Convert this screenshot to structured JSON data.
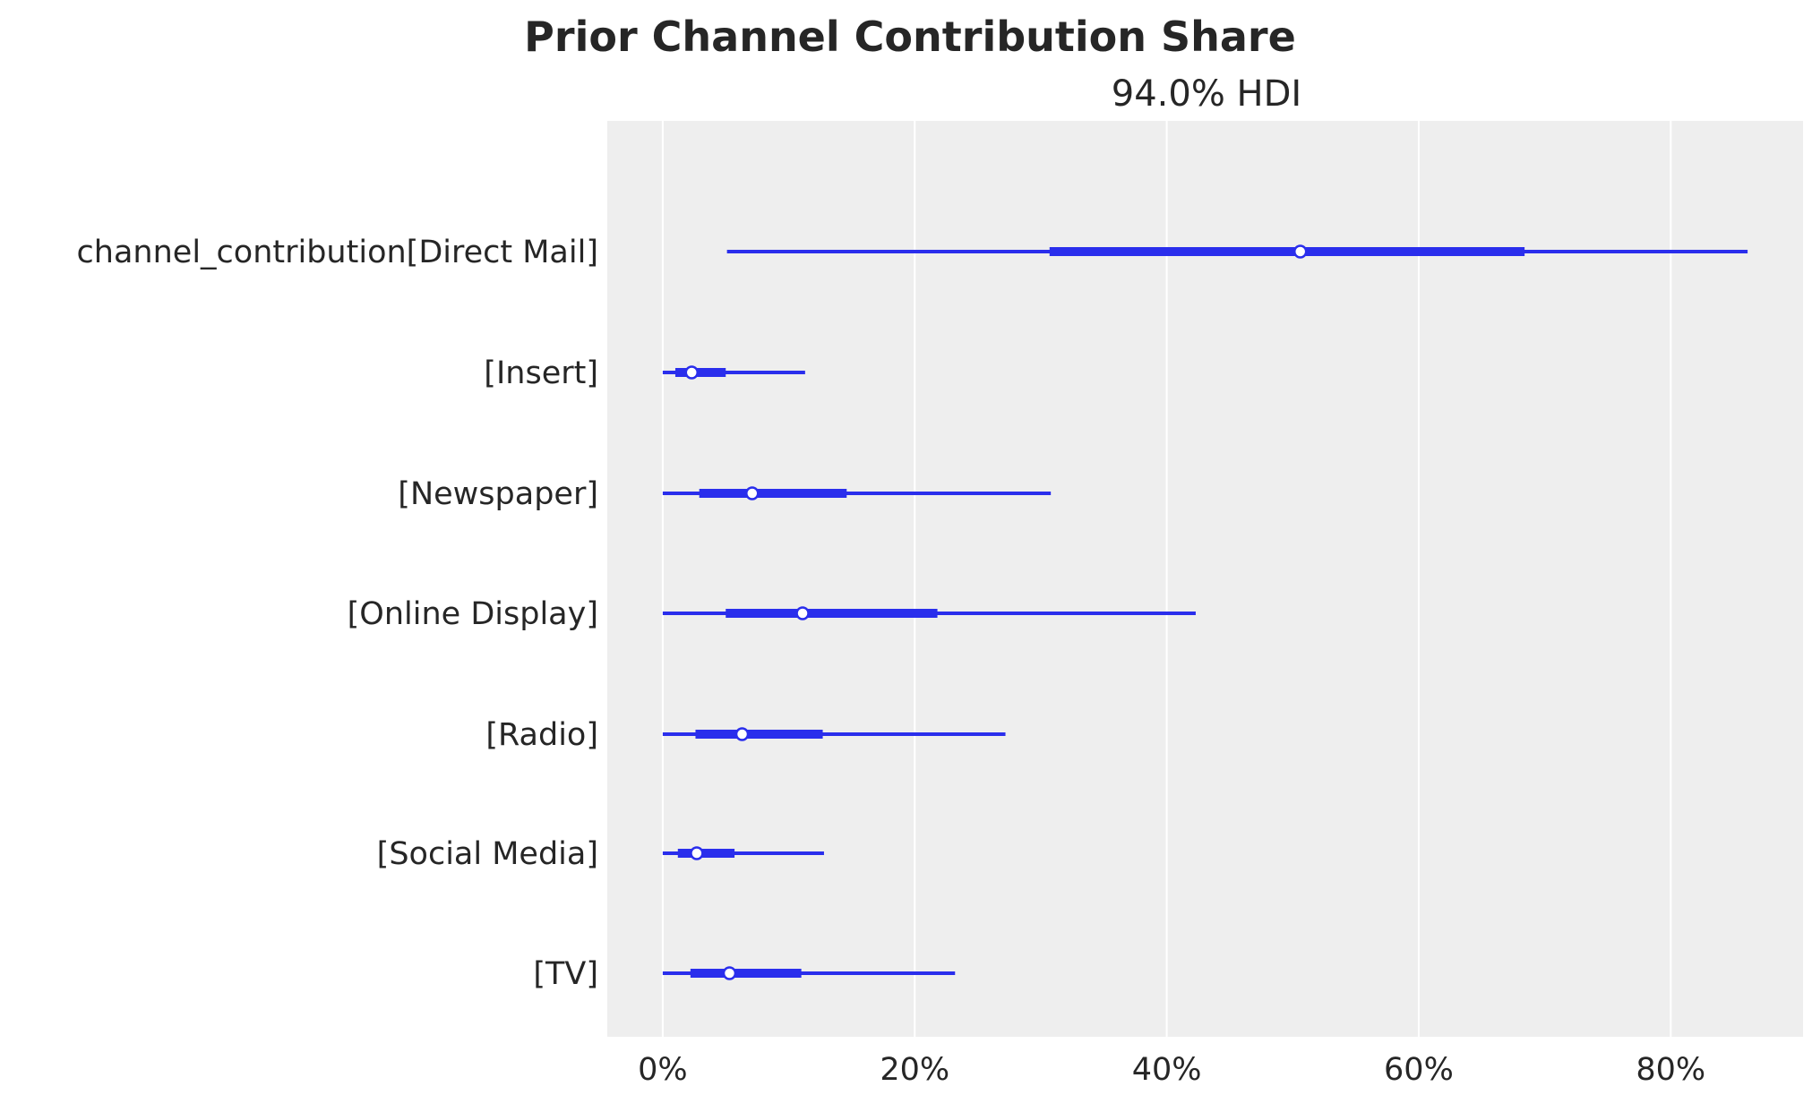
{
  "chart_data": {
    "type": "forest",
    "title": "Prior Channel Contribution Share",
    "subtitle": "94.0% HDI",
    "xlabel": "",
    "ylabel": "",
    "xlim": [
      -4.4,
      90.5
    ],
    "xticks": [
      0,
      20,
      40,
      60,
      80
    ],
    "xtick_labels": [
      "0%",
      "20%",
      "40%",
      "60%",
      "80%"
    ],
    "grid": true,
    "colors": {
      "line": "#2a2eec",
      "background": "#eeeeee",
      "grid": "#ffffff"
    },
    "categories": [
      "channel_contribution[Direct Mail]",
      "[Insert]",
      "[Newspaper]",
      "[Online Display]",
      "[Radio]",
      "[Social Media]",
      "[TV]"
    ],
    "series": [
      {
        "hdi_low": 5.1,
        "hdi_high": 86.1,
        "iqr_low": 30.7,
        "iqr_high": 68.4,
        "median": 50.6
      },
      {
        "hdi_low": 0.0,
        "hdi_high": 11.3,
        "iqr_low": 1.0,
        "iqr_high": 5.0,
        "median": 2.3
      },
      {
        "hdi_low": 0.0,
        "hdi_high": 30.8,
        "iqr_low": 2.9,
        "iqr_high": 14.6,
        "median": 7.1
      },
      {
        "hdi_low": 0.0,
        "hdi_high": 42.3,
        "iqr_low": 5.0,
        "iqr_high": 21.8,
        "median": 11.1
      },
      {
        "hdi_low": 0.0,
        "hdi_high": 27.2,
        "iqr_low": 2.6,
        "iqr_high": 12.7,
        "median": 6.3
      },
      {
        "hdi_low": 0.0,
        "hdi_high": 12.8,
        "iqr_low": 1.2,
        "iqr_high": 5.7,
        "median": 2.7
      },
      {
        "hdi_low": 0.0,
        "hdi_high": 23.2,
        "iqr_low": 2.2,
        "iqr_high": 11.0,
        "median": 5.3
      }
    ]
  }
}
